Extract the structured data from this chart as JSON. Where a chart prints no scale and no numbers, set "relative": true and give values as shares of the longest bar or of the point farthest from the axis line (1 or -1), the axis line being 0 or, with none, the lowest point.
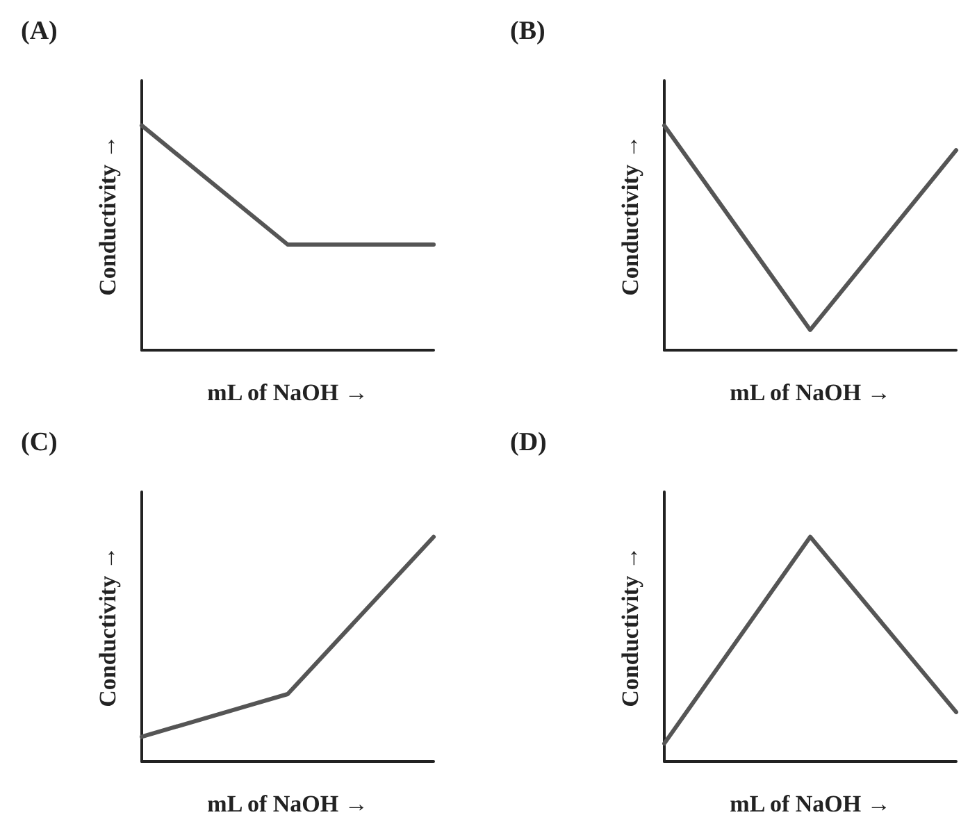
{
  "chart_data": [
    {
      "type": "line",
      "title": "(A)",
      "xlabel": "mL of NaOH →",
      "ylabel": "Conductivity →",
      "categories": [
        null,
        null,
        null
      ],
      "relative": true,
      "marker": "none",
      "line_style": "solid",
      "series": [
        {
          "color": "#555555",
          "values": [
            1,
            0.47,
            0.47
          ]
        }
      ]
    },
    {
      "type": "line",
      "title": "(B)",
      "xlabel": "mL of NaOH →",
      "ylabel": "Conductivity →",
      "categories": [
        null,
        null,
        null
      ],
      "relative": true,
      "marker": "none",
      "line_style": "solid",
      "series": [
        {
          "color": "#555555",
          "values": [
            1,
            0.09,
            0.89
          ]
        }
      ]
    },
    {
      "type": "line",
      "title": "(C)",
      "xlabel": "mL of NaOH →",
      "ylabel": "Conductivity →",
      "categories": [
        null,
        null,
        null
      ],
      "relative": true,
      "marker": "none",
      "line_style": "solid",
      "series": [
        {
          "color": "#555555",
          "values": [
            0.11,
            0.3,
            1
          ]
        }
      ]
    },
    {
      "type": "line",
      "title": "(D)",
      "xlabel": "mL of NaOH →",
      "ylabel": "Conductivity →",
      "categories": [
        null,
        null,
        null
      ],
      "relative": true,
      "marker": "none",
      "line_style": "solid",
      "series": [
        {
          "color": "#555555",
          "values": [
            0.08,
            1,
            0.22
          ]
        }
      ]
    }
  ]
}
